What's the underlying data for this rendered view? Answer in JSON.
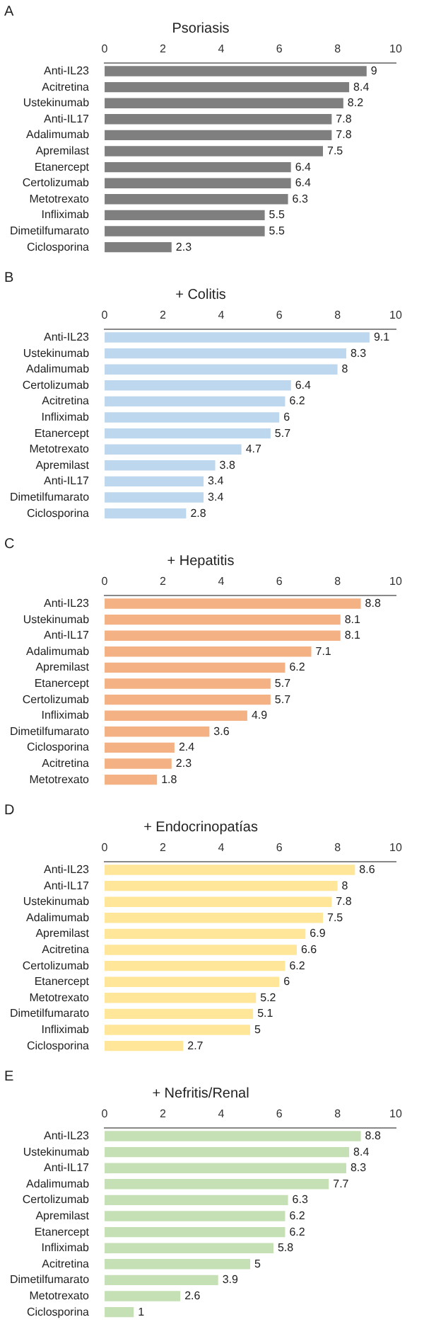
{
  "chart_data": [
    {
      "type": "bar",
      "orientation": "horizontal",
      "title": "Psoriasis",
      "annotations": [
        "A"
      ],
      "categories": [
        "Anti-IL23",
        "Acitretina",
        "Ustekinumab",
        "Anti-IL17",
        "Adalimumab",
        "Apremilast",
        "Etanercept",
        "Certolizumab",
        "Metotrexato",
        "Infliximab",
        "Dimetilfumarato",
        "Ciclosporina"
      ],
      "values": [
        9,
        8.4,
        8.2,
        7.8,
        7.8,
        7.5,
        6.4,
        6.4,
        6.3,
        5.5,
        5.5,
        2.3
      ],
      "color": "#7f7f7f",
      "xlim": [
        0,
        10
      ],
      "xticks": [
        0,
        2,
        4,
        6,
        8,
        10
      ],
      "data_labels": true
    },
    {
      "type": "bar",
      "orientation": "horizontal",
      "title": "+ Colitis",
      "annotations": [
        "B"
      ],
      "categories": [
        "Anti-IL23",
        "Ustekinumab",
        "Adalimumab",
        "Certolizumab",
        "Acitretina",
        "Infliximab",
        "Etanercept",
        "Metotrexato",
        "Apremilast",
        "Anti-IL17",
        "Dimetilfumarato",
        "Ciclosporina"
      ],
      "values": [
        9.1,
        8.3,
        8,
        6.4,
        6.2,
        6,
        5.7,
        4.7,
        3.8,
        3.4,
        3.4,
        2.8
      ],
      "color": "#bdd7ee",
      "xlim": [
        0,
        10
      ],
      "xticks": [
        0,
        2,
        4,
        6,
        8,
        10
      ],
      "data_labels": true
    },
    {
      "type": "bar",
      "orientation": "horizontal",
      "title": "+ Hepatitis",
      "annotations": [
        "C"
      ],
      "categories": [
        "Anti-IL23",
        "Ustekinumab",
        "Anti-IL17",
        "Adalimumab",
        "Apremilast",
        "Etanercept",
        "Certolizumab",
        "Infliximab",
        "Dimetilfumarato",
        "Ciclosporina",
        "Acitretina",
        "Metotrexato"
      ],
      "values": [
        8.8,
        8.1,
        8.1,
        7.1,
        6.2,
        5.7,
        5.7,
        4.9,
        3.6,
        2.4,
        2.3,
        1.8
      ],
      "color": "#f4b183",
      "xlim": [
        0,
        10
      ],
      "xticks": [
        0,
        2,
        4,
        6,
        8,
        10
      ],
      "data_labels": true
    },
    {
      "type": "bar",
      "orientation": "horizontal",
      "title": "+ Endocrinopatías",
      "annotations": [
        "D"
      ],
      "categories": [
        "Anti-IL23",
        "Anti-IL17",
        "Ustekinumab",
        "Adalimumab",
        "Apremilast",
        "Acitretina",
        "Certolizumab",
        "Etanercept",
        "Metotrexato",
        "Dimetilfumarato",
        "Infliximab",
        "Ciclosporina"
      ],
      "values": [
        8.6,
        8,
        7.8,
        7.5,
        6.9,
        6.6,
        6.2,
        6,
        5.2,
        5.1,
        5,
        2.7
      ],
      "color": "#ffe699",
      "xlim": [
        0,
        10
      ],
      "xticks": [
        0,
        2,
        4,
        6,
        8,
        10
      ],
      "data_labels": true
    },
    {
      "type": "bar",
      "orientation": "horizontal",
      "title": "+ Nefritis/Renal",
      "annotations": [
        "E"
      ],
      "categories": [
        "Anti-IL23",
        "Ustekinumab",
        "Anti-IL17",
        "Adalimumab",
        "Certolizumab",
        "Apremilast",
        "Etanercept",
        "Infliximab",
        "Acitretina",
        "Dimetilfumarato",
        "Metotrexato",
        "Ciclosporina"
      ],
      "values": [
        8.8,
        8.4,
        8.3,
        7.7,
        6.3,
        6.2,
        6.2,
        5.8,
        5,
        3.9,
        2.6,
        1
      ],
      "color": "#c5e0b4",
      "xlim": [
        0,
        10
      ],
      "xticks": [
        0,
        2,
        4,
        6,
        8,
        10
      ],
      "data_labels": true
    }
  ]
}
